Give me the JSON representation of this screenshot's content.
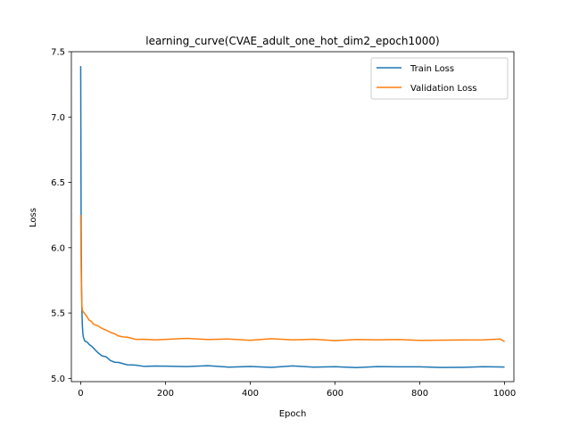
{
  "chart_data": {
    "type": "line",
    "title": "learning_curve(CVAE_adult_one_hot_dim2_epoch1000)",
    "xlabel": "Epoch",
    "ylabel": "Loss",
    "xlim": [
      -22,
      1022
    ],
    "ylim": [
      4.975,
      7.5
    ],
    "xticks": [
      0,
      200,
      400,
      600,
      800,
      1000
    ],
    "yticks": [
      5.0,
      5.5,
      6.0,
      6.5,
      7.0,
      7.5
    ],
    "xtick_labels": [
      "0",
      "200",
      "400",
      "600",
      "800",
      "1000"
    ],
    "ytick_labels": [
      "5.0",
      "5.5",
      "6.0",
      "6.5",
      "7.0",
      "7.5"
    ],
    "grid": false,
    "legend_position": "top-right",
    "series": [
      {
        "name": "Train Loss",
        "color": "#1f77b4",
        "x": [
          0,
          1,
          2,
          3,
          4,
          5,
          6,
          8,
          10,
          13,
          16,
          20,
          25,
          30,
          40,
          50,
          60,
          70,
          80,
          90,
          100,
          110,
          120,
          130,
          150,
          175,
          200,
          250,
          300,
          350,
          400,
          450,
          500,
          550,
          600,
          650,
          700,
          750,
          800,
          850,
          900,
          950,
          1000
        ],
        "y": [
          7.39,
          6.2,
          5.72,
          5.5,
          5.4,
          5.35,
          5.32,
          5.3,
          5.29,
          5.28,
          5.27,
          5.26,
          5.25,
          5.23,
          5.2,
          5.17,
          5.16,
          5.14,
          5.13,
          5.12,
          5.11,
          5.105,
          5.1,
          5.098,
          5.096,
          5.094,
          5.093,
          5.092,
          5.091,
          5.09,
          5.09,
          5.089,
          5.089,
          5.088,
          5.088,
          5.088,
          5.087,
          5.087,
          5.087,
          5.087,
          5.086,
          5.086,
          5.086
        ]
      },
      {
        "name": "Validation Loss",
        "color": "#ff7f0e",
        "x": [
          0,
          1,
          2,
          3,
          4,
          6,
          8,
          10,
          15,
          20,
          25,
          30,
          40,
          50,
          60,
          70,
          80,
          90,
          100,
          110,
          120,
          130,
          150,
          175,
          200,
          250,
          300,
          350,
          400,
          450,
          500,
          550,
          600,
          650,
          700,
          750,
          800,
          850,
          900,
          950,
          990,
          1000
        ],
        "y": [
          6.25,
          5.85,
          5.65,
          5.55,
          5.52,
          5.51,
          5.5,
          5.49,
          5.47,
          5.45,
          5.43,
          5.42,
          5.4,
          5.38,
          5.37,
          5.35,
          5.34,
          5.33,
          5.32,
          5.31,
          5.305,
          5.3,
          5.3,
          5.3,
          5.3,
          5.3,
          5.3,
          5.3,
          5.297,
          5.297,
          5.296,
          5.296,
          5.295,
          5.295,
          5.295,
          5.294,
          5.294,
          5.294,
          5.293,
          5.293,
          5.3,
          5.28
        ]
      }
    ]
  }
}
